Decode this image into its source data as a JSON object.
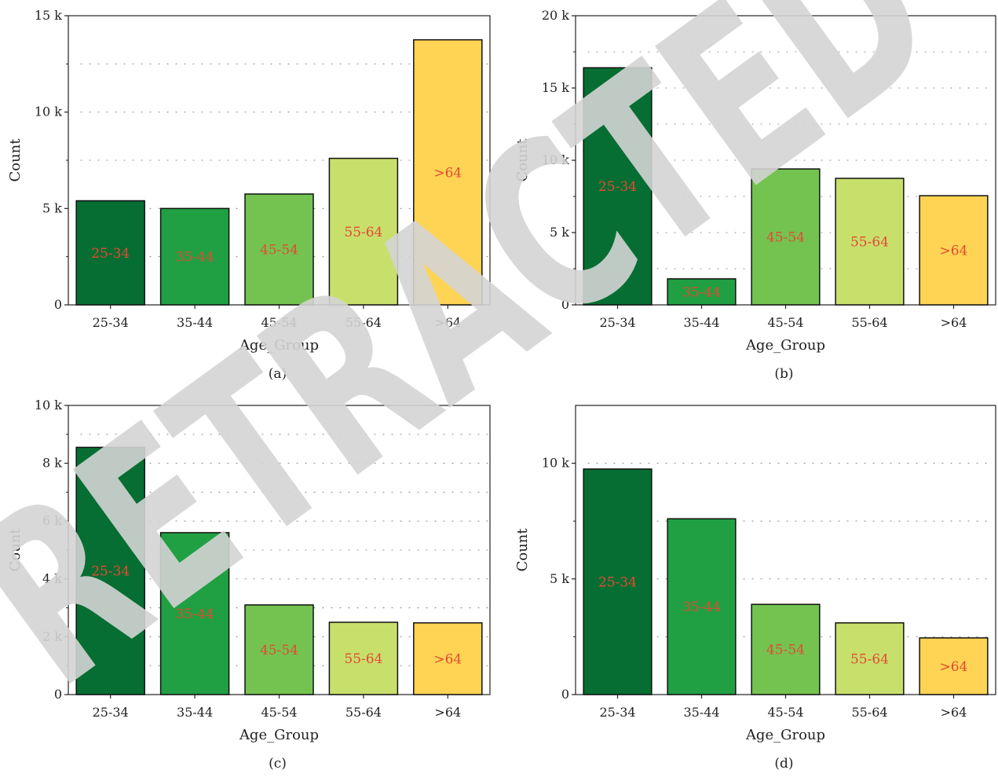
{
  "watermark": {
    "text": "RETRACTED",
    "color": "#d4d4d4"
  },
  "colors": {
    "bar_palette": [
      "#066e32",
      "#20a043",
      "#74c350",
      "#c8df6c",
      "#ffd454"
    ],
    "bar_label_color": "#e34a33",
    "grid_color": "#8c8c8c",
    "axis_color": "#222222"
  },
  "chart_data": [
    {
      "type": "bar",
      "caption": "(a)",
      "categories": [
        "25-34",
        "35-44",
        "45-54",
        "55-64",
        ">64"
      ],
      "values": [
        5400,
        5000,
        5750,
        7600,
        13750
      ],
      "bar_labels": [
        "25-34",
        "35-44",
        "45-54",
        "55-64",
        ">64"
      ],
      "xlabel": "Age_Group",
      "ylabel": "Count",
      "ylim": [
        0,
        15000
      ],
      "yticks": [
        0,
        5000,
        10000,
        15000
      ],
      "ytick_labels": [
        "0",
        "5 k",
        "10 k",
        "15 k"
      ],
      "grid": "dotted horizontal"
    },
    {
      "type": "bar",
      "caption": "(b)",
      "categories": [
        "25-34",
        "35-44",
        "45-54",
        "55-64",
        ">64"
      ],
      "values": [
        16400,
        1800,
        9400,
        8750,
        7550
      ],
      "bar_labels": [
        "25-34",
        "35-44",
        "45-54",
        "55-64",
        ">64"
      ],
      "xlabel": "Age_Group",
      "ylabel": "Count",
      "ylim": [
        0,
        20000
      ],
      "yticks": [
        0,
        5000,
        10000,
        15000,
        20000
      ],
      "ytick_labels": [
        "0",
        "5 k",
        "10 k",
        "15 k",
        "20 k"
      ],
      "grid": "dotted horizontal"
    },
    {
      "type": "bar",
      "caption": "(c)",
      "categories": [
        "25-34",
        "35-44",
        "45-54",
        "55-64",
        ">64"
      ],
      "values": [
        8550,
        5600,
        3100,
        2500,
        2480
      ],
      "bar_labels": [
        "25-34",
        "35-44",
        "45-54",
        "55-64",
        ">64"
      ],
      "xlabel": "Age_Group",
      "ylabel": "Count",
      "ylim": [
        0,
        10000
      ],
      "yticks": [
        0,
        2000,
        4000,
        6000,
        8000,
        10000
      ],
      "ytick_labels": [
        "0",
        "2 k",
        "4 k",
        "6 k",
        "8 k",
        "10 k"
      ],
      "grid": "dotted horizontal"
    },
    {
      "type": "bar",
      "caption": "(d)",
      "categories": [
        "25-34",
        "35-44",
        "45-54",
        "55-64",
        ">64"
      ],
      "values": [
        9750,
        7600,
        3900,
        3100,
        2450
      ],
      "bar_labels": [
        "25-34",
        "35-44",
        "45-54",
        "55-64",
        ">64"
      ],
      "xlabel": "Age_Group",
      "ylabel": "Count",
      "ylim": [
        0,
        12500
      ],
      "yticks": [
        0,
        5000,
        10000
      ],
      "ytick_labels": [
        "0",
        "5 k",
        "10 k"
      ],
      "grid": "dotted horizontal"
    }
  ]
}
